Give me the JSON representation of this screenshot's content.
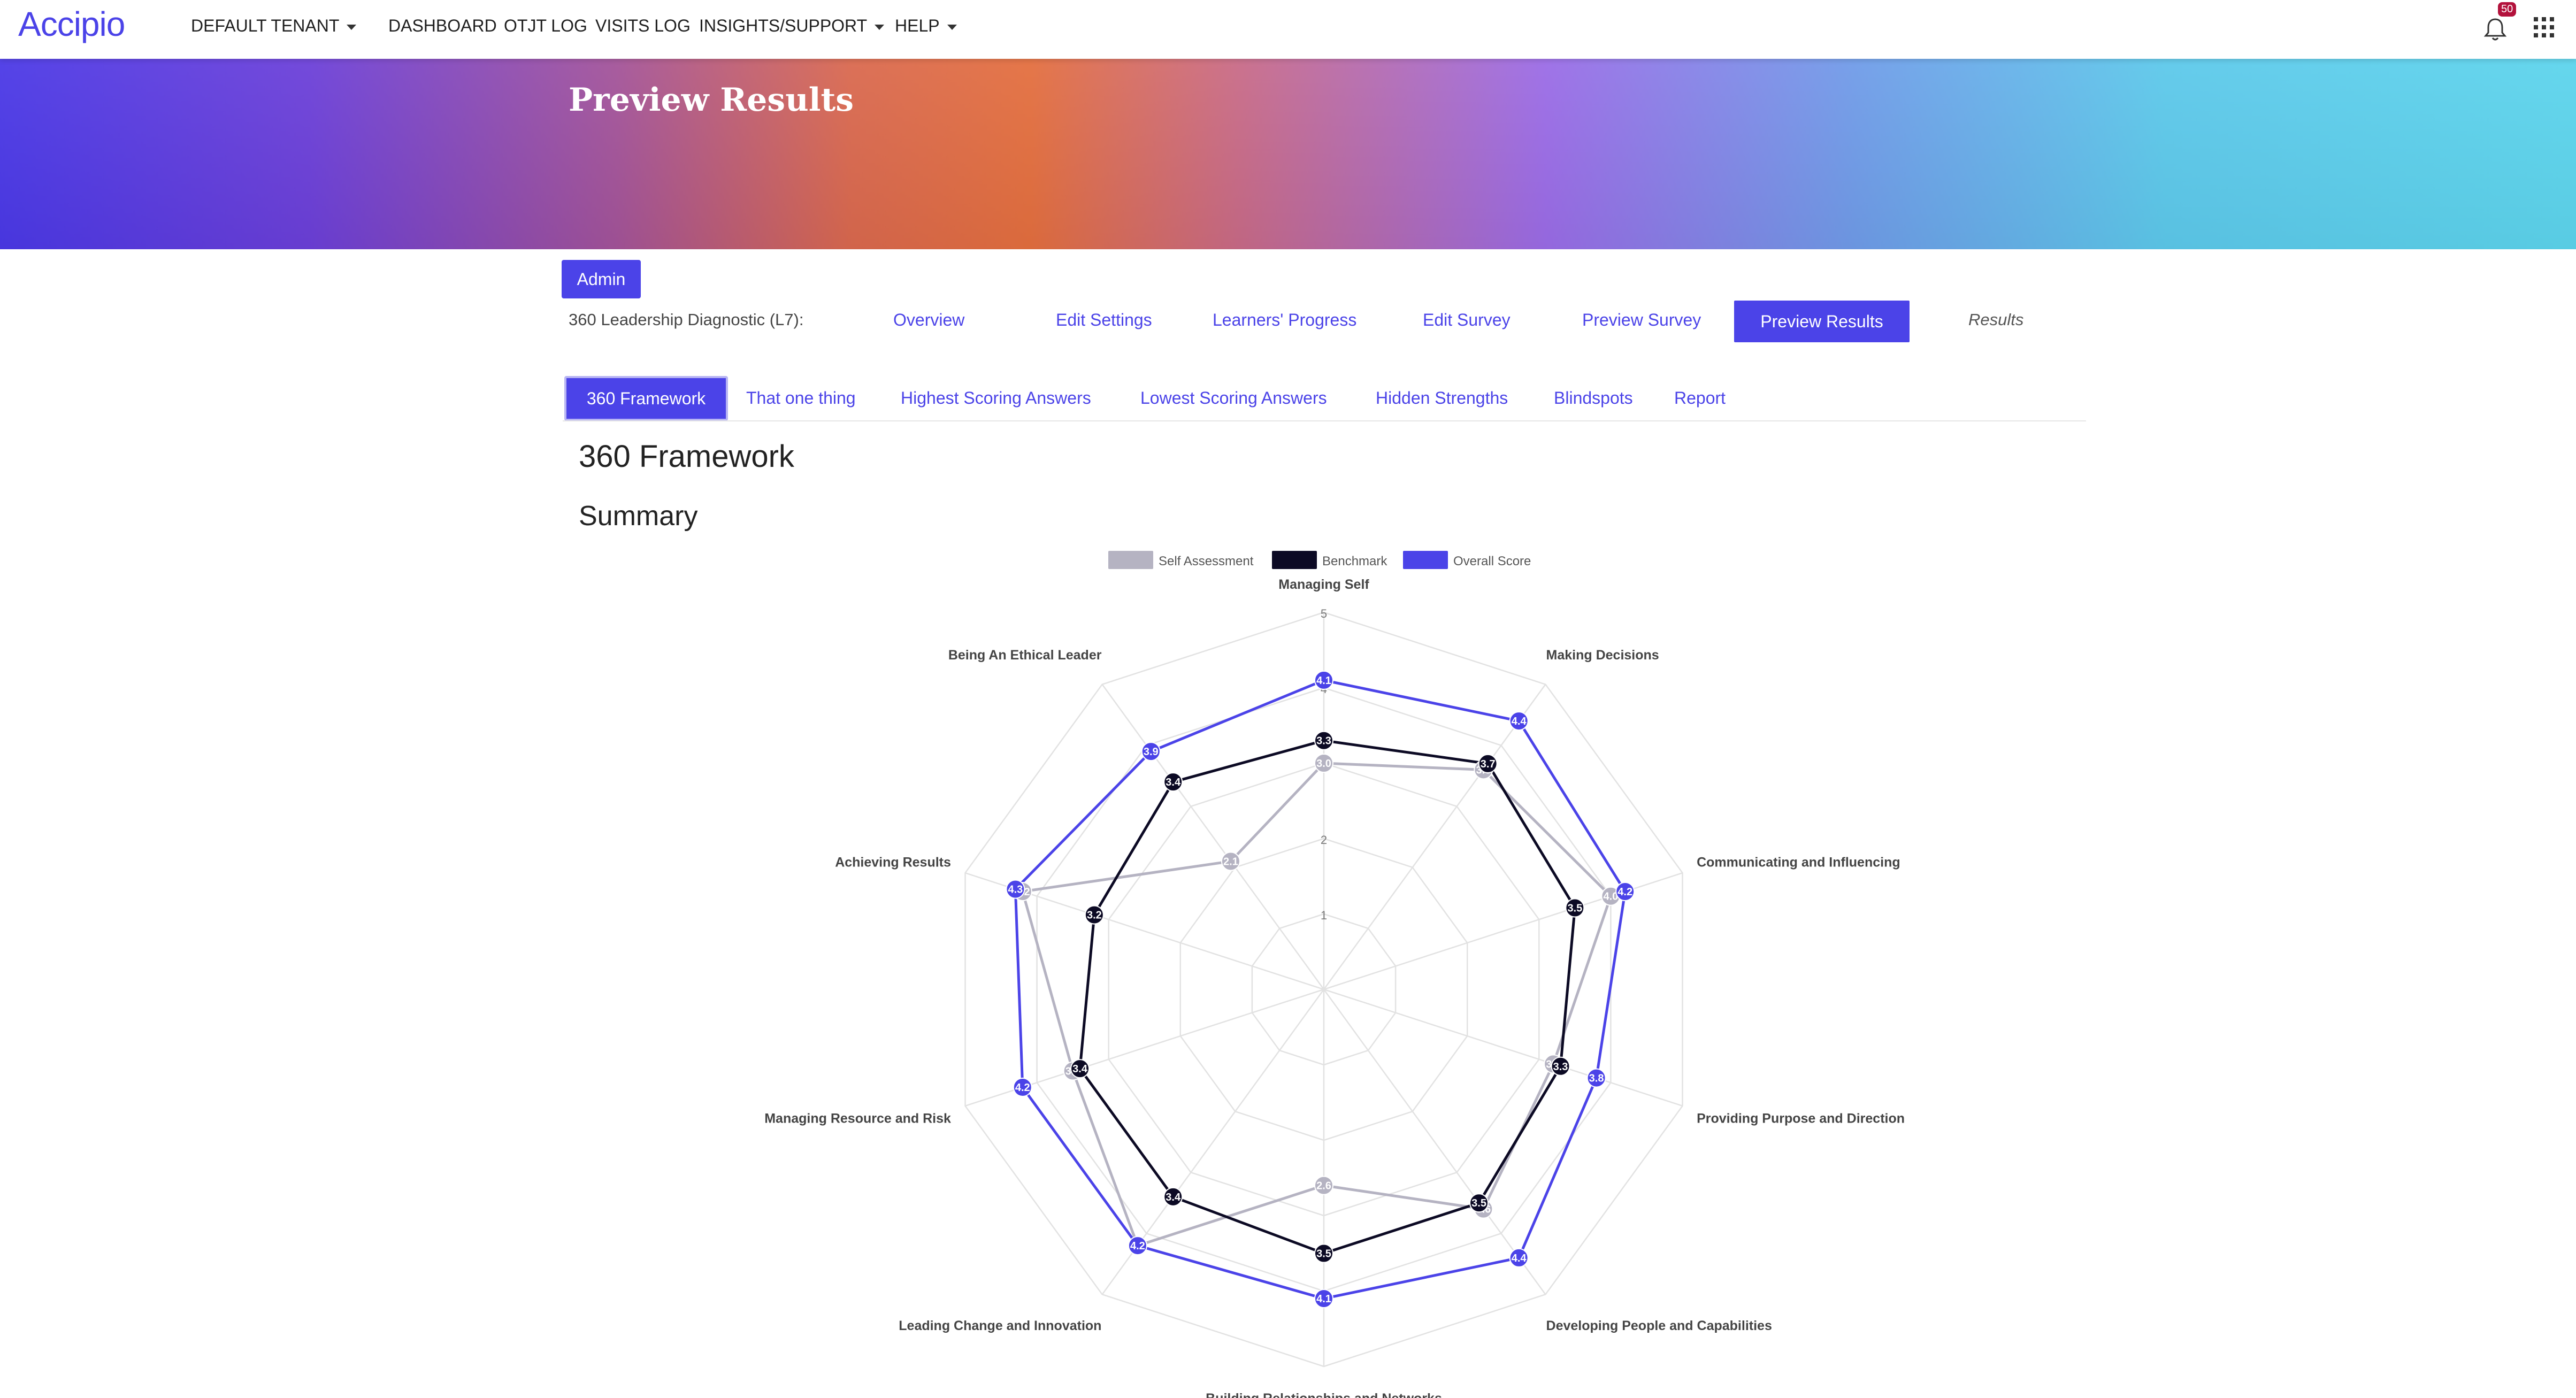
{
  "brand": {
    "logo": "Accipio",
    "accent": "#4b43e8"
  },
  "nav": {
    "tenant": "DEFAULT TENANT",
    "items": [
      "DASHBOARD",
      "OTJT LOG",
      "VISITS LOG",
      "INSIGHTS/SUPPORT",
      "HELP"
    ],
    "notification_count": "50",
    "bell_icon": "bell-icon",
    "apps_icon": "grid-icon"
  },
  "banner": {
    "title": "Preview Results"
  },
  "admin": {
    "label": "Admin"
  },
  "survey": {
    "label": "360 Leadership Diagnostic (L7):",
    "tabs": [
      "Overview",
      "Edit Settings",
      "Learners' Progress",
      "Edit Survey",
      "Preview Survey"
    ],
    "active_tab": "Preview Results",
    "results_label": "Results"
  },
  "subtabs": {
    "active": "360 Framework",
    "items": [
      "That one thing",
      "Highest Scoring Answers",
      "Lowest Scoring Answers",
      "Hidden Strengths",
      "Blindspots",
      "Report"
    ]
  },
  "headings": {
    "title": "360 Framework",
    "summary": "Summary"
  },
  "chart_data": {
    "type": "radar",
    "axes": [
      "Managing Self",
      "Making Decisions",
      "Communicating and Influencing",
      "Providing Purpose and Direction",
      "Developing People and Capabilities",
      "Building Relationships and Networks",
      "Leading Change and Innovation",
      "Managing Resource and Risk",
      "Achieving Results",
      "Being An Ethical Leader"
    ],
    "ticks": [
      "1",
      "2",
      "3",
      "4",
      "5"
    ],
    "rmax": 5,
    "series": [
      {
        "name": "Self Assessment",
        "color": "#b5b3c2",
        "values": [
          3.0,
          3.6,
          4.0,
          3.2,
          3.6,
          2.6,
          4.2,
          3.5,
          4.2,
          2.1
        ]
      },
      {
        "name": "Benchmark",
        "color": "#0c0a24",
        "values": [
          3.3,
          3.7,
          3.5,
          3.3,
          3.5,
          3.5,
          3.4,
          3.4,
          3.2,
          3.4
        ]
      },
      {
        "name": "Overall Score",
        "color": "#4b43e8",
        "values": [
          4.1,
          4.4,
          4.2,
          3.8,
          4.4,
          4.1,
          4.2,
          4.2,
          4.3,
          3.9
        ]
      }
    ]
  }
}
